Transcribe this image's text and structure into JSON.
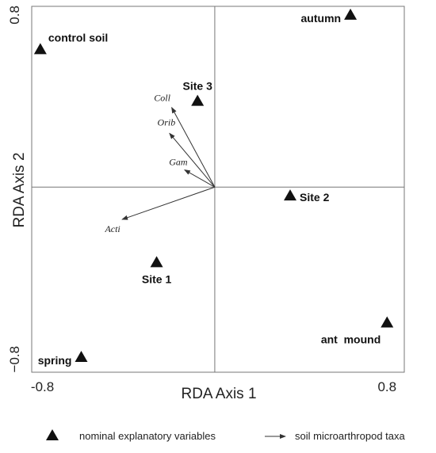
{
  "chart_data": {
    "type": "scatter",
    "subtype": "rda-biplot",
    "xlabel": "RDA Axis 1",
    "ylabel": "RDA Axis 2",
    "xlim": [
      -0.85,
      0.88
    ],
    "ylim": [
      -0.86,
      0.84
    ],
    "xticks": [
      {
        "value": -0.8,
        "label": "-0.8"
      },
      {
        "value": 0.8,
        "label": "0.8"
      }
    ],
    "yticks": [
      {
        "value": 0.8,
        "label": "0.8"
      },
      {
        "value": -0.8,
        "label": "−0.8"
      }
    ],
    "origin_lines": true,
    "points": [
      {
        "name": "control soil",
        "x": -0.81,
        "y": 0.64
      },
      {
        "name": "autumn",
        "x": 0.63,
        "y": 0.8
      },
      {
        "name": "Site 3",
        "x": -0.08,
        "y": 0.4
      },
      {
        "name": "Site 2",
        "x": 0.35,
        "y": -0.04
      },
      {
        "name": "Site 1",
        "x": -0.27,
        "y": -0.35
      },
      {
        "name": "ant  mound",
        "x": 0.8,
        "y": -0.63
      },
      {
        "name": "spring",
        "x": -0.62,
        "y": -0.79
      }
    ],
    "vectors": [
      {
        "name": "Coll",
        "x": -0.2,
        "y": 0.37
      },
      {
        "name": "Orib",
        "x": -0.21,
        "y": 0.25
      },
      {
        "name": "Gam",
        "x": -0.14,
        "y": 0.08
      },
      {
        "name": "Acti",
        "x": -0.43,
        "y": -0.15
      }
    ],
    "legend": [
      {
        "symbol": "triangle",
        "label": "nominal explanatory variables"
      },
      {
        "symbol": "arrow",
        "label": "soil microarthropod taxa"
      }
    ],
    "legend_position": "bottom"
  }
}
